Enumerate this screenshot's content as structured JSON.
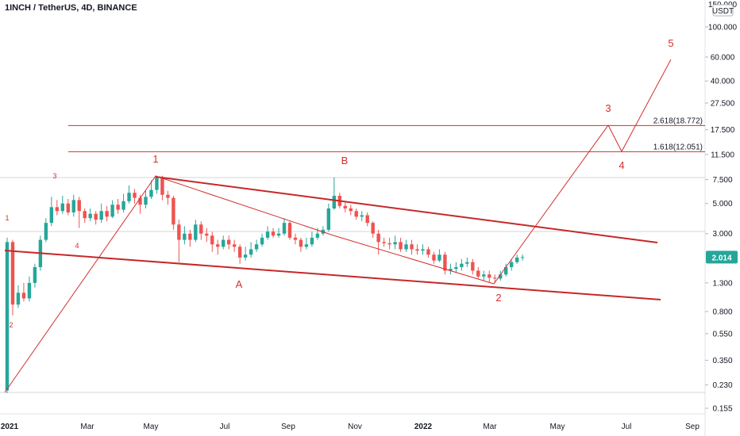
{
  "header": {
    "title": "1INCH / TetherUS, 4D, BINANCE"
  },
  "chart_data": {
    "type": "candlestick",
    "symbol": "1INCH / TetherUS",
    "interval": "4D",
    "exchange": "BINANCE",
    "y_scale": "log",
    "ylim": [
      0.14,
      160
    ],
    "currency_label": "USDT",
    "top_partial_tick": "150.000",
    "y_ticks": [
      "100.000",
      "60.000",
      "40.000",
      "27.500",
      "17.500",
      "11.500",
      "7.500",
      "5.000",
      "3.000",
      "1.300",
      "0.800",
      "0.550",
      "0.350",
      "0.230",
      "0.155"
    ],
    "x_ticks": [
      "2021",
      "Mar",
      "May",
      "Jul",
      "Sep",
      "Nov",
      "2022",
      "Mar",
      "May",
      "Jul",
      "Sep"
    ],
    "last_price": "2.014",
    "colors": {
      "up": "#26a69a",
      "down": "#ef5350",
      "wave": "#d32f2f",
      "channel": "#c62828",
      "price_label": "#26a69a"
    },
    "candles": [
      [
        0.21,
        2.6,
        2.8,
        0.2
      ],
      [
        2.6,
        0.9,
        2.7,
        0.75
      ],
      [
        0.9,
        1.1,
        1.25,
        0.85
      ],
      [
        1.1,
        1.0,
        1.3,
        0.95
      ],
      [
        1.0,
        1.3,
        1.45,
        0.95
      ],
      [
        1.3,
        1.7,
        1.8,
        1.2
      ],
      [
        1.7,
        2.7,
        2.9,
        1.6
      ],
      [
        2.7,
        3.6,
        3.9,
        2.6
      ],
      [
        3.6,
        4.7,
        5.6,
        3.4
      ],
      [
        4.7,
        4.4,
        5.3,
        4.1
      ],
      [
        4.4,
        5.0,
        5.7,
        4.2
      ],
      [
        5.0,
        4.3,
        5.4,
        4.1
      ],
      [
        4.3,
        5.3,
        5.8,
        4.0
      ],
      [
        5.3,
        4.4,
        5.6,
        3.3
      ],
      [
        4.4,
        3.9,
        4.6,
        3.6
      ],
      [
        3.9,
        4.2,
        4.6,
        3.7
      ],
      [
        4.2,
        3.8,
        4.4,
        3.5
      ],
      [
        3.8,
        4.4,
        5.0,
        3.6
      ],
      [
        4.4,
        4.0,
        4.8,
        3.7
      ],
      [
        4.0,
        4.9,
        5.3,
        3.9
      ],
      [
        4.9,
        4.5,
        5.4,
        4.2
      ],
      [
        4.5,
        5.2,
        5.9,
        4.3
      ],
      [
        5.2,
        6.0,
        6.8,
        5.0
      ],
      [
        6.0,
        5.5,
        6.4,
        5.0
      ],
      [
        5.5,
        4.9,
        5.8,
        4.2
      ],
      [
        4.9,
        5.6,
        6.2,
        4.6
      ],
      [
        5.6,
        6.3,
        7.4,
        5.4
      ],
      [
        6.3,
        7.8,
        8.0,
        5.9
      ],
      [
        7.8,
        5.8,
        8.0,
        5.3
      ],
      [
        5.8,
        5.5,
        6.2,
        4.9
      ],
      [
        5.5,
        3.5,
        5.7,
        3.2
      ],
      [
        3.5,
        2.7,
        3.8,
        1.85
      ],
      [
        2.7,
        3.0,
        3.4,
        2.5
      ],
      [
        3.0,
        2.7,
        3.2,
        2.4
      ],
      [
        2.7,
        3.5,
        3.8,
        2.6
      ],
      [
        3.5,
        3.0,
        3.7,
        2.7
      ],
      [
        3.0,
        2.9,
        3.3,
        2.6
      ],
      [
        2.9,
        2.5,
        3.1,
        2.2
      ],
      [
        2.5,
        2.4,
        2.7,
        2.1
      ],
      [
        2.4,
        2.7,
        2.9,
        2.3
      ],
      [
        2.7,
        2.5,
        2.9,
        2.3
      ],
      [
        2.5,
        2.4,
        2.7,
        2.2
      ],
      [
        2.4,
        2.0,
        2.5,
        1.8
      ],
      [
        2.0,
        2.1,
        2.4,
        1.9
      ],
      [
        2.1,
        2.3,
        2.6,
        2.0
      ],
      [
        2.3,
        2.5,
        2.7,
        2.2
      ],
      [
        2.5,
        2.8,
        3.0,
        2.4
      ],
      [
        2.8,
        3.1,
        3.4,
        2.7
      ],
      [
        3.1,
        2.9,
        3.3,
        2.8
      ],
      [
        2.9,
        3.0,
        3.3,
        2.8
      ],
      [
        3.0,
        3.6,
        3.9,
        2.9
      ],
      [
        3.6,
        2.8,
        3.7,
        2.7
      ],
      [
        2.8,
        2.7,
        3.0,
        2.5
      ],
      [
        2.7,
        2.4,
        2.8,
        2.2
      ],
      [
        2.4,
        2.5,
        2.8,
        2.3
      ],
      [
        2.5,
        2.8,
        3.1,
        2.4
      ],
      [
        2.8,
        3.0,
        3.3,
        2.7
      ],
      [
        3.0,
        3.2,
        3.4,
        2.9
      ],
      [
        3.2,
        4.6,
        5.0,
        3.1
      ],
      [
        4.6,
        5.7,
        7.8,
        4.5
      ],
      [
        5.7,
        4.8,
        6.0,
        4.6
      ],
      [
        4.8,
        4.6,
        5.1,
        4.3
      ],
      [
        4.6,
        4.4,
        4.9,
        4.1
      ],
      [
        4.4,
        4.0,
        4.6,
        3.8
      ],
      [
        4.0,
        4.1,
        4.4,
        3.7
      ],
      [
        4.1,
        3.6,
        4.3,
        3.4
      ],
      [
        3.6,
        3.0,
        3.7,
        2.8
      ],
      [
        3.0,
        2.6,
        3.2,
        2.1
      ],
      [
        2.6,
        2.55,
        2.8,
        2.4
      ],
      [
        2.55,
        2.5,
        2.8,
        2.3
      ],
      [
        2.5,
        2.6,
        2.9,
        2.3
      ],
      [
        2.6,
        2.3,
        2.8,
        2.2
      ],
      [
        2.3,
        2.5,
        2.7,
        2.2
      ],
      [
        2.5,
        2.3,
        2.7,
        2.1
      ],
      [
        2.3,
        2.25,
        2.5,
        2.1
      ],
      [
        2.25,
        2.3,
        2.5,
        2.1
      ],
      [
        2.3,
        2.1,
        2.4,
        2.0
      ],
      [
        2.1,
        1.9,
        2.2,
        1.8
      ],
      [
        1.9,
        2.1,
        2.3,
        1.85
      ],
      [
        2.1,
        1.6,
        2.2,
        1.5
      ],
      [
        1.6,
        1.65,
        1.8,
        1.5
      ],
      [
        1.65,
        1.7,
        1.85,
        1.55
      ],
      [
        1.7,
        1.8,
        1.95,
        1.6
      ],
      [
        1.8,
        1.85,
        2.0,
        1.7
      ],
      [
        1.85,
        1.6,
        1.95,
        1.5
      ],
      [
        1.6,
        1.45,
        1.7,
        1.4
      ],
      [
        1.45,
        1.5,
        1.6,
        1.35
      ],
      [
        1.5,
        1.42,
        1.6,
        1.3
      ],
      [
        1.42,
        1.4,
        1.5,
        1.3
      ],
      [
        1.4,
        1.5,
        1.6,
        1.35
      ],
      [
        1.5,
        1.7,
        1.8,
        1.45
      ],
      [
        1.7,
        1.85,
        1.95,
        1.6
      ],
      [
        1.85,
        2.0,
        2.1,
        1.8
      ],
      [
        2.0,
        2.014,
        2.1,
        1.9
      ]
    ],
    "fib_levels": [
      {
        "label": "2.618(18.772)",
        "value": 18.772
      },
      {
        "label": "1.618(12.051)",
        "value": 12.051
      }
    ],
    "wave_labels": [
      {
        "text": "1",
        "size": "small"
      },
      {
        "text": "2",
        "size": "small"
      },
      {
        "text": "3",
        "size": "small"
      },
      {
        "text": "4",
        "size": "small"
      },
      {
        "text": "1",
        "size": "large"
      },
      {
        "text": "A",
        "size": "large"
      },
      {
        "text": "B",
        "size": "large"
      },
      {
        "text": "2",
        "size": "large"
      },
      {
        "text": "3",
        "size": "large"
      },
      {
        "text": "4",
        "size": "large"
      },
      {
        "text": "5",
        "size": "large"
      }
    ]
  }
}
